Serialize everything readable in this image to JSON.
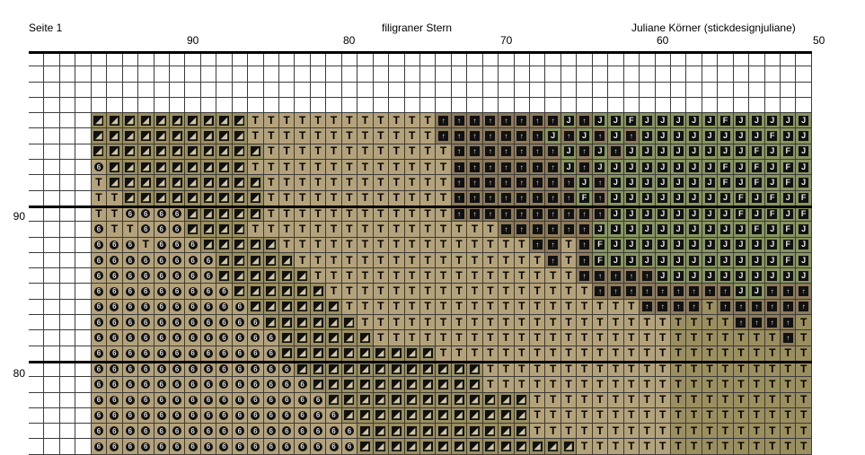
{
  "header": {
    "page_label": "Seite 1",
    "title": "filigraner Stern",
    "author": "Juliane Körner (stickdesignjuliane)"
  },
  "column_numbers": [
    "90",
    "80",
    "70",
    "60",
    "50"
  ],
  "row_numbers": [
    "90",
    "80"
  ],
  "colors": {
    "grid_line": "#3c3c3c",
    "block_line": "#000000",
    "empty_cell": "#ffffff",
    "fill_light": "#b4a27a",
    "fill_olive": "#9b8f5e",
    "fill_brown": "#8c7a5a",
    "fill_green": "#87955e"
  },
  "legend_symbols": [
    {
      "key": "6",
      "glyph": "6",
      "icon": "circle-six-symbol-icon"
    },
    {
      "key": "/",
      "glyph": "◢",
      "icon": "slash-square-symbol-icon"
    },
    {
      "key": "T",
      "glyph": "T",
      "icon": "letter-t-symbol-icon"
    },
    {
      "key": "A",
      "glyph": "↑",
      "icon": "arrow-square-symbol-icon"
    },
    {
      "key": "J",
      "glyph": "J",
      "icon": "letter-j-square-symbol-icon"
    },
    {
      "key": "F",
      "glyph": "F",
      "icon": "letter-f-square-symbol-icon"
    }
  ],
  "pattern": [
    "..................................................",
    "..................................................",
    "..................................................",
    "..................................................",
    "....//////////TTTTTTTTTTTTAAAAAAAAJAJJFJJJJJFJJJJJ",
    "....//////////TTTTTTTTTTTTAAAAAAAJAJAJAJJJJJJJJFJJ",
    "....///////////TTTTTTTTTTTTAAAAAAAJAJAJJJJJJJJFJFJ",
    "....6/////////TTTTTTTTTTTTTAAAAAAAJAJJJJJJJJFJFJFJ",
    "....T//////////TTTTTTTTTTTTAAAAAAAAJAJJJJJJJFJFJFJ",
    "....TT/////////TTTTTTTTTTTTAAAAAAAAFAJJJJJJJJFJFJF",
    "....TT6666/////TTTTTTTTTTTTAAAAAAAAAAJJJJJJJJFJFJF",
    "....6TT666////TTTTTTTTTTTTTTTTAAAAAAJJJJJJJJJJFJFJ",
    "....666T666/////TTTTTTTTTTTTTTTTAATAFJJJJJJJJJJJFJ",
    "....66666666/////TTTTTTTTTTTTTTTTATAFJJJJJJJJJJJFJ",
    "....66666666//////TTTTTTTTTTTTTTTTTAAAAAJJJJJJJJJJ",
    "....666666666//////TTTTTTTTTTTTTTTTTAAAAAAAAAJJAAA",
    "....6666666666//////TTTTTTTTTTTTTTTTTTTAAAATAAAAAA",
    "....66666666666//////TTTTTTTTTTTTTTTTTTTTTTTTAAAAT",
    "....666666666666//////TTTTTTTTTTTTTTTTTTTTTTTTTTAT",
    "....666666666666//////////TTTTTTTTTTTTTTTTTTTTTTTT",
    "....6666666666666////////////TTTTTTTTTTTTTTTTTTTTT",
    "....66666666666666///////////TTTTTTTTTTTTTTTTTTTTT",
    "....666666666666666/////////////TTTTTTTTTTTTTTTTTT",
    "....6666666666666666////////////TTTTTTTTTTTTTTTTTT",
    "....66666666666666666///////////TTTTTTTTTTTTTTTTTT",
    "....66666666666666666//////////////TTTTTTTTTTTTTTT"
  ]
}
